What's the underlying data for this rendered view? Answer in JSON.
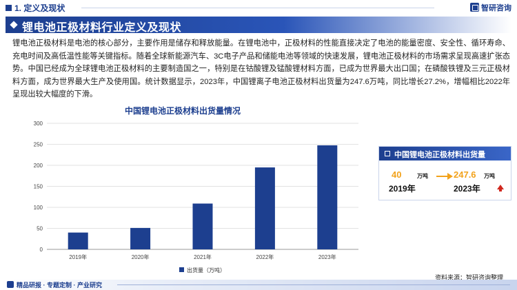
{
  "header": {
    "section": "1. 定义及现状",
    "brand": "智研咨询"
  },
  "banner": {
    "title": "锂电池正极材料行业定义及现状"
  },
  "body": {
    "paragraph": "锂电池正极材料是电池的核心部分，主要作用是储存和释放能量。在锂电池中，正极材料的性能直接决定了电池的能量密度、安全性、循环寿命、充电时间及高低温性能等关键指标。随着全球新能源汽车、3C电子产品和储能电池等领域的快速发展，锂电池正极材料的市场需求呈现高速扩张态势。中国已经成为全球锂电池正极材料的主要制造国之一，特别是在钴酸锂及锰酸锂材料方面，已成为世界最大出口国；在磷酸铁锂及三元正极材料方面，成为世界最大生产及使用国。统计数据显示，2023年，中国锂离子电池正极材料出货量为247.6万吨，同比增长27.2%，增幅相比2022年呈现出较大幅度的下滑。"
  },
  "chart_data": {
    "type": "bar",
    "title": "中国锂电池正极材料出货量情况",
    "categories": [
      "2019年",
      "2020年",
      "2021年",
      "2022年",
      "2023年"
    ],
    "series": [
      {
        "name": "出货量（万吨）",
        "values": [
          40,
          51,
          109,
          195,
          247.6
        ]
      }
    ],
    "ylim": [
      0,
      300
    ],
    "yticks": [
      0,
      50,
      100,
      150,
      200,
      250,
      300
    ],
    "grid": true,
    "legend": "bottom-center",
    "bar_color": "#1d3f8f"
  },
  "card": {
    "title": "中国锂电池正极材料出货量",
    "start": {
      "value": "40",
      "unit": "万吨",
      "year": "2019年"
    },
    "end": {
      "value": "247.6",
      "unit": "万吨",
      "year": "2023年"
    }
  },
  "source": "资料来源：智研咨询整理",
  "footer": {
    "text": "精品研报 · 专题定制 · 产业研究"
  },
  "colors": {
    "primary": "#1d3f8f",
    "accent": "#f2a21b",
    "up": "#d0271d"
  }
}
